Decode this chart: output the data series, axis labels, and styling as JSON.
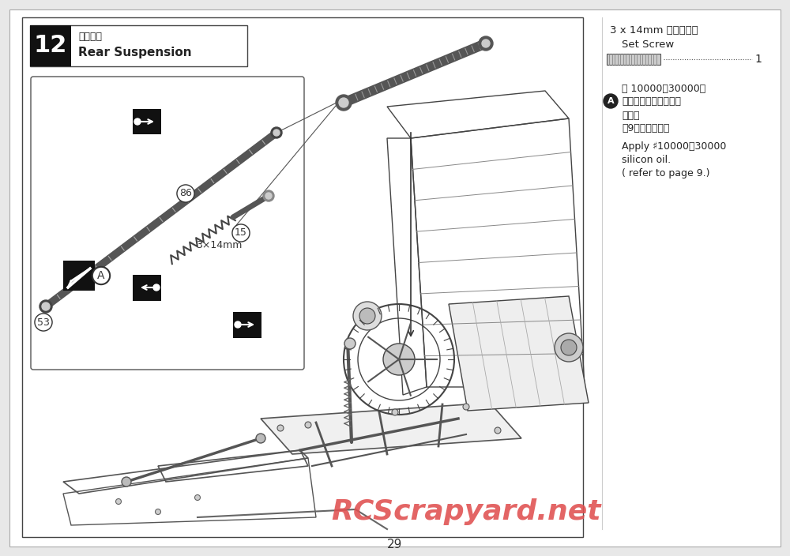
{
  "bg_color": "#e8e8e8",
  "page_bg": "#ffffff",
  "page_number": "29",
  "step_number": "12",
  "step_title_jp": "リヤサス",
  "step_title_en": "Rear Suspension",
  "right_panel_title": "3 x 14mm セットビス",
  "right_panel_subtitle": "Set Screw",
  "right_panel_count": "1",
  "note_label": "A",
  "note_jp_line1": "＃ 10000～30000の",
  "note_jp_line2": "シリコンオイルを塗付",
  "note_jp_line3": "する。",
  "note_jp_line4": "（9ページ参照）",
  "note_en_line1": "Apply ♯10000～30000",
  "note_en_line2": "silicon oil.",
  "note_en_line3": "( refer to page 9.)",
  "watermark": "RCScrapyard.net",
  "watermark_color": "#e05050",
  "part_label_53": "53",
  "part_label_86": "86",
  "part_label_15": "15",
  "part_label_3x14mm": "3×14mm"
}
